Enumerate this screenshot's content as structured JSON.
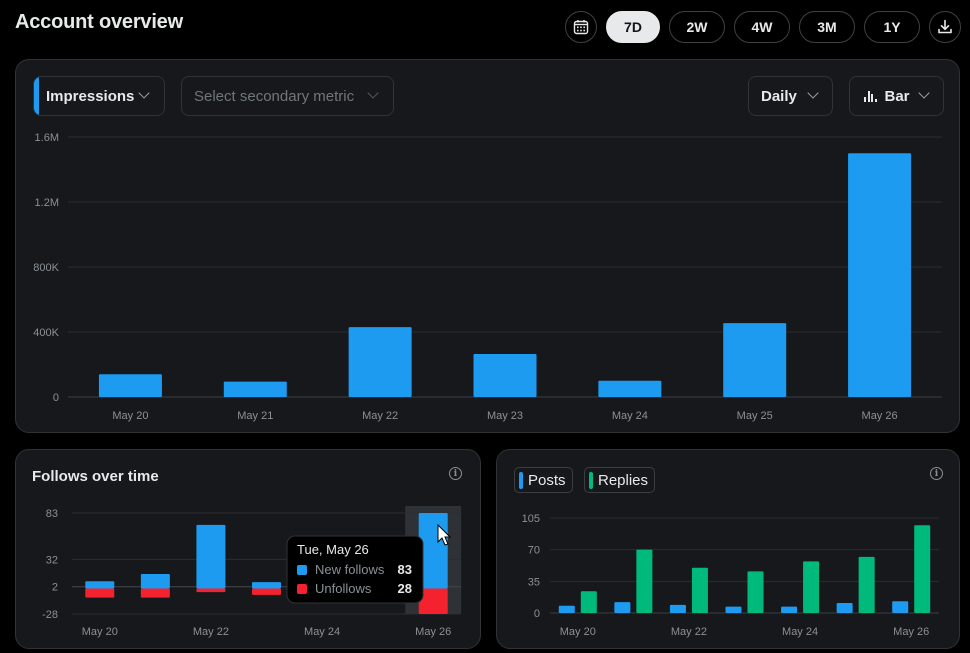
{
  "header": {
    "title": "Account overview",
    "ranges": [
      "7D",
      "2W",
      "4W",
      "3M",
      "1Y"
    ],
    "active_range": "7D"
  },
  "icons": {
    "calendar": "calendar-icon",
    "download": "download-icon",
    "info": "info-icon",
    "chevron": "chevron-down-icon",
    "bar_chart": "bar-chart-icon",
    "cursor": "mouse-pointer-icon"
  },
  "colors": {
    "blue": "#1d9bf0",
    "red": "#f4212e",
    "green": "#00ba7c",
    "background": "#000000",
    "card": "#16181c"
  },
  "main_chart": {
    "primary_metric": "Impressions",
    "secondary_placeholder": "Select secondary metric",
    "interval": "Daily",
    "chart_type_label": "Bar"
  },
  "follows_card": {
    "title": "Follows over time"
  },
  "posts_card": {
    "legend": [
      "Posts",
      "Replies"
    ]
  },
  "tooltip": {
    "date": "Tue, May 26",
    "rows": [
      {
        "label": "New follows",
        "value": "83"
      },
      {
        "label": "Unfollows",
        "value": "28"
      }
    ]
  },
  "chart_data": [
    {
      "type": "bar",
      "categories": [
        "May 20",
        "May 21",
        "May 22",
        "May 23",
        "May 24",
        "May 25",
        "May 26"
      ],
      "series": [
        {
          "name": "Impressions",
          "values": [
            140000,
            95000,
            430000,
            265000,
            100000,
            455000,
            1500000
          ]
        }
      ],
      "ylim": [
        0,
        1600000
      ],
      "yticks": [
        0,
        400000,
        800000,
        1200000,
        1600000
      ],
      "ytick_labels": [
        "0",
        "400K",
        "800K",
        "1.2M",
        "1.6M"
      ],
      "grid": true
    },
    {
      "type": "bar",
      "title": "Follows over time",
      "categories": [
        "May 20",
        "May 21",
        "May 22",
        "May 23",
        "May 24",
        "May 25",
        "May 26"
      ],
      "xtick_labels": [
        "May 20",
        "May 22",
        "May 24",
        "May 26"
      ],
      "series": [
        {
          "name": "New follows",
          "values": [
            8,
            16,
            70,
            7,
            0,
            0,
            83
          ]
        },
        {
          "name": "Unfollows",
          "values": [
            -10,
            -10,
            -4,
            -7,
            0,
            0,
            -28
          ]
        }
      ],
      "ylim": [
        -28,
        83
      ],
      "yticks": [
        -28,
        2,
        32,
        83
      ],
      "ytick_labels": [
        "-28",
        "2",
        "32",
        "83"
      ],
      "highlighted_category": "May 26",
      "grid": true
    },
    {
      "type": "bar",
      "categories": [
        "May 20",
        "May 21",
        "May 22",
        "May 23",
        "May 24",
        "May 25",
        "May 26"
      ],
      "xtick_labels": [
        "May 20",
        "May 22",
        "May 24",
        "May 26"
      ],
      "series": [
        {
          "name": "Posts",
          "values": [
            8,
            12,
            9,
            7,
            7,
            11,
            13
          ]
        },
        {
          "name": "Replies",
          "values": [
            24,
            70,
            50,
            46,
            57,
            62,
            97
          ]
        }
      ],
      "ylim": [
        0,
        105
      ],
      "yticks": [
        0,
        35,
        70,
        105
      ],
      "ytick_labels": [
        "0",
        "35",
        "70",
        "105"
      ],
      "grid": true
    }
  ]
}
